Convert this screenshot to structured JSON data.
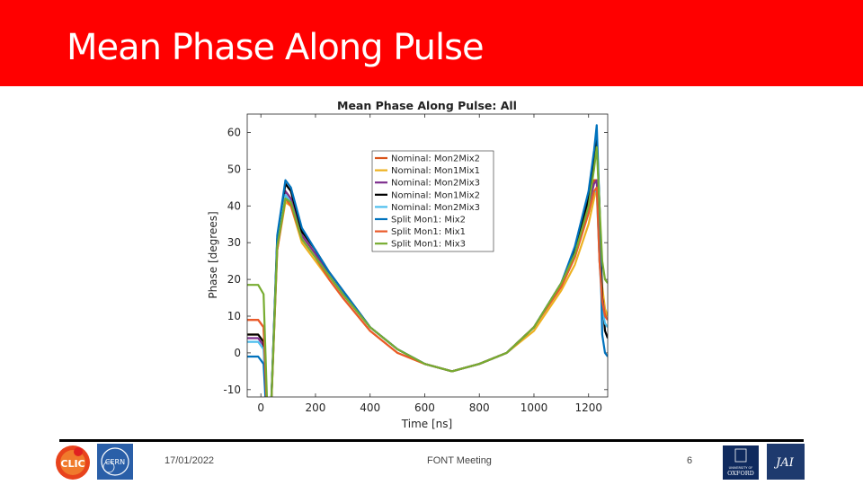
{
  "slide": {
    "title": "Mean Phase Along Pulse",
    "footer_date": "17/01/2022",
    "footer_center": "FONT Meeting",
    "footer_page": "6",
    "header_color": "#ff0000"
  },
  "logos": {
    "clic": "CLIC",
    "cern": "CERN",
    "oxford_top": "UNIVERSITY OF",
    "oxford": "OXFORD",
    "jai": "JAI"
  },
  "chart_data": {
    "type": "line",
    "title": "Mean Phase Along Pulse: All",
    "xlabel": "Time [ns]",
    "ylabel": "Phase [degrees]",
    "xlim": [
      -50,
      1270
    ],
    "ylim": [
      -12,
      65
    ],
    "xticks": [
      0,
      200,
      400,
      600,
      800,
      1000,
      1200
    ],
    "yticks": [
      -10,
      0,
      10,
      20,
      30,
      40,
      50,
      60
    ],
    "legend_position": "top-right",
    "grid": false,
    "series": [
      {
        "name": "Nominal: Mon2Mix2",
        "color": "#d95319",
        "x": [
          -50,
          -10,
          10,
          30,
          60,
          90,
          110,
          150,
          200,
          250,
          300,
          400,
          500,
          600,
          700,
          800,
          900,
          1000,
          1100,
          1150,
          1200,
          1220,
          1230,
          1240,
          1250,
          1260,
          1270
        ],
        "y": [
          9,
          9,
          7,
          -30,
          30,
          44,
          42,
          32,
          27,
          21,
          16,
          7,
          1,
          -3,
          -5,
          -3,
          0,
          7,
          19,
          28,
          40,
          47,
          47,
          25,
          15,
          11,
          10
        ]
      },
      {
        "name": "Nominal: Mon1Mix1",
        "color": "#edb120",
        "x": [
          -50,
          -10,
          10,
          30,
          60,
          90,
          110,
          150,
          200,
          250,
          300,
          400,
          500,
          600,
          700,
          800,
          900,
          1000,
          1100,
          1150,
          1200,
          1220,
          1230,
          1240,
          1250,
          1260,
          1270
        ],
        "y": [
          5,
          5,
          3,
          -30,
          28,
          41,
          40,
          30,
          25,
          20,
          15,
          6,
          0,
          -3,
          -5,
          -3,
          0,
          6,
          17,
          24,
          35,
          42,
          45,
          30,
          18,
          12,
          10
        ]
      },
      {
        "name": "Nominal: Mon2Mix3",
        "color": "#7e2f8e",
        "x": [
          -50,
          -10,
          10,
          30,
          60,
          90,
          110,
          150,
          200,
          250,
          300,
          400,
          500,
          600,
          700,
          800,
          900,
          1000,
          1100,
          1150,
          1200,
          1220,
          1230,
          1240,
          1250,
          1260,
          1270
        ],
        "y": [
          4,
          4,
          2,
          -30,
          30,
          44,
          42,
          32,
          27,
          21,
          16,
          7,
          1,
          -3,
          -5,
          -3,
          0,
          7,
          19,
          28,
          40,
          46,
          47,
          28,
          15,
          10,
          9
        ]
      },
      {
        "name": "Nominal: Mon1Mix2",
        "color": "#000000",
        "x": [
          -50,
          -10,
          10,
          30,
          60,
          90,
          110,
          150,
          200,
          250,
          300,
          400,
          500,
          600,
          700,
          800,
          900,
          1000,
          1100,
          1150,
          1200,
          1220,
          1230,
          1240,
          1250,
          1260,
          1270
        ],
        "y": [
          5,
          5,
          3,
          -30,
          31,
          46,
          44,
          33,
          28,
          22,
          17,
          7,
          1,
          -3,
          -5,
          -3,
          0,
          7,
          19,
          28,
          42,
          52,
          59,
          40,
          15,
          6,
          4
        ]
      },
      {
        "name": "Nominal: Mon2Mix3",
        "color": "#4dbeee",
        "x": [
          -50,
          -10,
          10,
          30,
          60,
          90,
          110,
          150,
          200,
          250,
          300,
          400,
          500,
          600,
          700,
          800,
          900,
          1000,
          1100,
          1150,
          1200,
          1220,
          1230,
          1240,
          1250,
          1260,
          1270
        ],
        "y": [
          3,
          3,
          1,
          -30,
          29,
          43,
          41,
          31,
          26,
          21,
          16,
          7,
          1,
          -3,
          -5,
          -3,
          0,
          7,
          19,
          27,
          38,
          44,
          44,
          25,
          12,
          8,
          7
        ]
      },
      {
        "name": "Split Mon1: Mix2",
        "color": "#0072bd",
        "x": [
          -50,
          -10,
          10,
          30,
          60,
          90,
          110,
          150,
          200,
          250,
          300,
          400,
          500,
          600,
          700,
          800,
          900,
          1000,
          1100,
          1150,
          1200,
          1220,
          1230,
          1240,
          1250,
          1260,
          1270
        ],
        "y": [
          -1,
          -1,
          -3,
          -30,
          32,
          47,
          45,
          34,
          28,
          22,
          17,
          7,
          1,
          -3,
          -5,
          -3,
          0,
          7,
          19,
          29,
          44,
          55,
          62,
          40,
          5,
          0,
          -1
        ]
      },
      {
        "name": "Split Mon1: Mix1",
        "color": "#ea5a2a",
        "x": [
          -50,
          -10,
          10,
          30,
          60,
          90,
          110,
          150,
          200,
          250,
          300,
          400,
          500,
          600,
          700,
          800,
          900,
          1000,
          1100,
          1150,
          1200,
          1220,
          1230,
          1240,
          1250,
          1260,
          1270
        ],
        "y": [
          9,
          9,
          7,
          -30,
          28,
          42,
          40,
          31,
          26,
          20,
          15,
          6,
          0,
          -3,
          -5,
          -3,
          0,
          7,
          18,
          26,
          38,
          44,
          45,
          25,
          14,
          10,
          9
        ]
      },
      {
        "name": "Split Mon1: Mix3",
        "color": "#77ac30",
        "x": [
          -50,
          -10,
          10,
          30,
          60,
          90,
          110,
          150,
          200,
          250,
          300,
          400,
          500,
          600,
          700,
          800,
          900,
          1000,
          1100,
          1150,
          1200,
          1220,
          1230,
          1240,
          1250,
          1260,
          1270
        ],
        "y": [
          18.5,
          18.5,
          16,
          -30,
          29,
          42,
          41,
          31,
          26,
          21,
          16,
          7,
          1,
          -3,
          -5,
          -3,
          0,
          7,
          19,
          27,
          40,
          50,
          56,
          40,
          25,
          20,
          19
        ]
      }
    ]
  }
}
